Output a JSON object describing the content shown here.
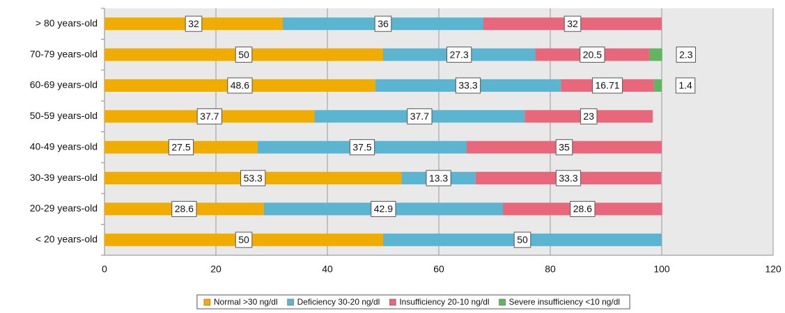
{
  "chart_data": {
    "type": "stacked-barh",
    "categories": [
      "> 80 years-old",
      "70-79 years-old",
      "60-69 years-old",
      "50-59 years-old",
      "40-49 years-old",
      "30-39 years-old",
      "20-29 years-old",
      "< 20 years-old"
    ],
    "series": [
      {
        "name": "Normal >30 ng/dl",
        "color": "#f0ac00",
        "values": [
          32,
          50,
          48.6,
          37.7,
          27.5,
          53.3,
          28.6,
          50
        ]
      },
      {
        "name": "Deficiency 30-20 ng/dl",
        "color": "#5bb4d0",
        "values": [
          36,
          27.3,
          33.3,
          37.7,
          37.5,
          13.3,
          42.9,
          50
        ]
      },
      {
        "name": "Insufficiency 20-10 ng/dl",
        "color": "#e8677a",
        "values": [
          32,
          20.5,
          16.71,
          23,
          35,
          33.3,
          28.6,
          null
        ]
      },
      {
        "name": "Severe insufficiency <10 ng/dl",
        "color": "#5fb65f",
        "values": [
          null,
          2.3,
          1.4,
          null,
          null,
          null,
          null,
          null
        ]
      }
    ],
    "xlim": [
      0,
      120
    ],
    "xticks": [
      0,
      20,
      40,
      60,
      80,
      100,
      120
    ],
    "grid": true
  }
}
